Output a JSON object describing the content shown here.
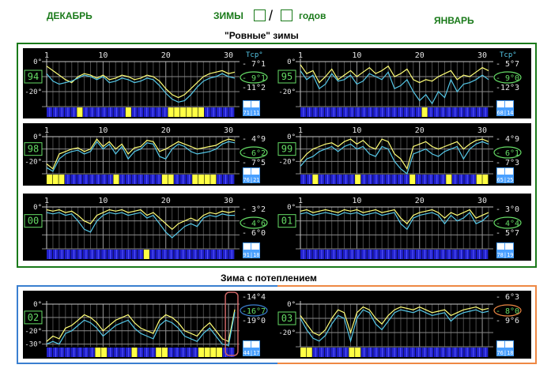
{
  "header": {
    "december": "ДЕКАБРЬ",
    "winters": "ЗИМЫ",
    "slash": "/",
    "years": "годов",
    "january": "ЯНВАРЬ"
  },
  "section_even": {
    "title": "\"Ровные\" зимы"
  },
  "section_warm": {
    "title": "Зима с потеплением"
  },
  "colors": {
    "frame_even": "#1a7a1a",
    "frame_warm_left": "#3a7fd0",
    "frame_warm_right": "#ee8844",
    "highlight": "#cc6666",
    "series_yellow": "#ffff77",
    "series_cyan": "#55c8e8",
    "bar_blue": "#2020cc",
    "bar_yellow": "#ffff44",
    "panel_bg": "#000000",
    "label_green": "#66dd66",
    "label_light": "#e6e6e6"
  },
  "chart_data": [
    {
      "type": "line",
      "month": "Декабрь",
      "year_label": "94",
      "x_ticks": [
        "1",
        "10",
        "20",
        "30"
      ],
      "y_ticks": [
        "0°",
        "-20°"
      ],
      "unit_label": "Tср°",
      "ylim": [
        -30,
        0
      ],
      "top_value": "- 7°1",
      "mid_value": "- 9°1",
      "bottom_value": "-11°2",
      "badge_top": "",
      "badge_bottom": "71|11",
      "series": [
        {
          "color": "yellow",
          "values": [
            -3,
            -6,
            -9,
            -12,
            -14,
            -10,
            -8,
            -9,
            -11,
            -9,
            -12,
            -11,
            -9,
            -10,
            -12,
            -11,
            -9,
            -10,
            -13,
            -18,
            -22,
            -24,
            -22,
            -18,
            -14,
            -10,
            -8,
            -7,
            -6,
            -8,
            -7
          ]
        },
        {
          "color": "cyan",
          "values": [
            -8,
            -13,
            -15,
            -14,
            -13,
            -11,
            -9,
            -10,
            -12,
            -10,
            -14,
            -13,
            -11,
            -12,
            -14,
            -13,
            -11,
            -12,
            -16,
            -21,
            -25,
            -27,
            -26,
            -22,
            -17,
            -13,
            -11,
            -10,
            -8,
            -10,
            -11
          ]
        }
      ],
      "bars": "BBBBBYBBBBBBBYBBBBBBYYYYYYBBBBB"
    },
    {
      "type": "line",
      "month": "Январь",
      "year_label": "95",
      "x_ticks": [
        "1",
        "10",
        "20",
        "30"
      ],
      "y_ticks": [
        "0°",
        "-20°"
      ],
      "unit_label": "Tср°",
      "ylim": [
        -30,
        0
      ],
      "top_value": "- 5°7",
      "mid_value": "- 9°0",
      "bottom_value": "-12°3",
      "badge_top": "",
      "badge_bottom": "68|14",
      "series": [
        {
          "color": "yellow",
          "values": [
            -2,
            -8,
            -6,
            -14,
            -10,
            -5,
            -12,
            -9,
            -6,
            -10,
            -7,
            -4,
            -8,
            -6,
            -3,
            -10,
            -8,
            -5,
            -12,
            -14,
            -12,
            -13,
            -10,
            -8,
            -6,
            -12,
            -9,
            -10,
            -7,
            -4,
            -6
          ]
        },
        {
          "color": "cyan",
          "values": [
            -6,
            -12,
            -9,
            -18,
            -15,
            -8,
            -13,
            -12,
            -9,
            -15,
            -13,
            -8,
            -10,
            -12,
            -7,
            -18,
            -16,
            -12,
            -20,
            -26,
            -22,
            -28,
            -20,
            -24,
            -12,
            -20,
            -15,
            -14,
            -12,
            -9,
            -12
          ]
        }
      ],
      "bars": "BBBBBBBBBBBBBBBBBBBBYBBBBBBBBBB"
    },
    {
      "type": "line",
      "month": "Декабрь",
      "year_label": "98",
      "x_ticks": [
        "1",
        "10",
        "20",
        "30"
      ],
      "y_ticks": [
        "0°",
        "-20°"
      ],
      "unit_label": "",
      "ylim": [
        -30,
        0
      ],
      "top_value": "- 4°9",
      "mid_value": "- 6°2",
      "bottom_value": "- 7°5",
      "badge_top": "",
      "badge_bottom": "76|21",
      "series": [
        {
          "color": "yellow",
          "values": [
            -22,
            -26,
            -14,
            -12,
            -10,
            -9,
            -12,
            -10,
            -2,
            -8,
            -4,
            -10,
            -6,
            -14,
            -9,
            -8,
            -3,
            -4,
            -12,
            -10,
            -7,
            -4,
            -6,
            -8,
            -10,
            -9,
            -8,
            -7,
            -4,
            -2,
            -3
          ]
        },
        {
          "color": "cyan",
          "values": [
            -25,
            -28,
            -18,
            -14,
            -12,
            -11,
            -14,
            -12,
            -4,
            -10,
            -6,
            -14,
            -8,
            -18,
            -12,
            -10,
            -5,
            -6,
            -16,
            -18,
            -10,
            -6,
            -8,
            -12,
            -14,
            -13,
            -12,
            -10,
            -6,
            -4,
            -5
          ]
        }
      ],
      "bars": "YYYBBBBBBBBYBBBBBBBYYBBBYYYYBBB"
    },
    {
      "type": "line",
      "month": "Январь",
      "year_label": "99",
      "x_ticks": [
        "1",
        "10",
        "20",
        "30"
      ],
      "y_ticks": [
        "0°",
        "-20°"
      ],
      "unit_label": "",
      "ylim": [
        -30,
        0
      ],
      "top_value": "- 4°9",
      "mid_value": "- 6°1",
      "bottom_value": "- 7°3",
      "badge_top": "",
      "badge_bottom": "65|25",
      "series": [
        {
          "color": "yellow",
          "values": [
            -20,
            -14,
            -10,
            -8,
            -6,
            -5,
            -8,
            -4,
            -2,
            -6,
            -3,
            -8,
            -10,
            -2,
            -4,
            -14,
            -18,
            -26,
            -8,
            -6,
            -4,
            -8,
            -10,
            -8,
            -6,
            -4,
            -10,
            -6,
            -3,
            -2,
            -4
          ]
        },
        {
          "color": "cyan",
          "values": [
            -24,
            -18,
            -16,
            -12,
            -10,
            -8,
            -12,
            -8,
            -6,
            -10,
            -8,
            -14,
            -16,
            -8,
            -10,
            -20,
            -26,
            -30,
            -14,
            -12,
            -10,
            -14,
            -16,
            -12,
            -10,
            -8,
            -18,
            -10,
            -6,
            -4,
            -6
          ]
        }
      ],
      "bars": "BBYBBBBBBYBBBBBBBBYBBBBBYBBBBYY"
    },
    {
      "type": "line",
      "month": "Декабрь",
      "year_label": "00",
      "x_ticks": [
        "1",
        "10",
        "20",
        "30"
      ],
      "y_ticks": [
        "0°"
      ],
      "unit_label": "",
      "ylim": [
        -30,
        0
      ],
      "top_value": "- 3°2",
      "mid_value": "- 4°6",
      "bottom_value": "- 6°0",
      "badge_top": "",
      "badge_bottom": "91|18",
      "series": [
        {
          "color": "yellow",
          "values": [
            -2,
            -3,
            -2,
            -4,
            -3,
            -6,
            -10,
            -12,
            -6,
            -4,
            -2,
            -3,
            -2,
            -4,
            -3,
            -2,
            -6,
            -4,
            -8,
            -12,
            -16,
            -12,
            -10,
            -8,
            -10,
            -6,
            -4,
            -5,
            -3,
            -4,
            -3
          ]
        },
        {
          "color": "cyan",
          "values": [
            -4,
            -5,
            -4,
            -6,
            -5,
            -10,
            -16,
            -18,
            -10,
            -6,
            -4,
            -5,
            -4,
            -6,
            -5,
            -4,
            -8,
            -6,
            -12,
            -18,
            -22,
            -18,
            -14,
            -12,
            -14,
            -8,
            -6,
            -7,
            -5,
            -6,
            -6
          ]
        }
      ],
      "bars": "BBBBBBBBBBBBBBBBYBBBBBBBBBBBBBB"
    },
    {
      "type": "line",
      "month": "Январь",
      "year_label": "01",
      "x_ticks": [
        "1",
        "10",
        "20",
        "30"
      ],
      "y_ticks": [
        "0°"
      ],
      "unit_label": "",
      "ylim": [
        -30,
        0
      ],
      "top_value": "- 3°0",
      "mid_value": "- 4°4",
      "bottom_value": "- 5°7",
      "badge_top": "",
      "badge_bottom": "78|19",
      "series": [
        {
          "color": "yellow",
          "values": [
            -3,
            -2,
            -4,
            -3,
            -2,
            -3,
            -4,
            -2,
            -3,
            -2,
            -4,
            -3,
            -2,
            -4,
            -3,
            -2,
            -8,
            -12,
            -6,
            -4,
            -3,
            -2,
            -4,
            -8,
            -4,
            -6,
            -4,
            -2,
            -8,
            -6,
            -4
          ]
        },
        {
          "color": "cyan",
          "values": [
            -5,
            -4,
            -6,
            -5,
            -4,
            -5,
            -6,
            -4,
            -5,
            -4,
            -6,
            -5,
            -4,
            -6,
            -5,
            -4,
            -12,
            -16,
            -8,
            -6,
            -5,
            -4,
            -6,
            -12,
            -6,
            -10,
            -8,
            -4,
            -12,
            -10,
            -6
          ]
        }
      ],
      "bars": "BBBBBBBBBBBBBBBBBBBBBBBBBBBBBBB"
    },
    {
      "type": "line",
      "month": "Декабрь",
      "year_label": "02",
      "x_ticks": [],
      "y_ticks": [
        "0°",
        "-20°",
        "-30°"
      ],
      "unit_label": "",
      "ylim": [
        -32,
        0
      ],
      "top_value": "-14°4",
      "mid_value": "-16°7",
      "bottom_value": "-19°0",
      "badge_top": "",
      "badge_bottom": "44|17",
      "series": [
        {
          "color": "yellow",
          "values": [
            -28,
            -24,
            -26,
            -18,
            -16,
            -12,
            -8,
            -10,
            -14,
            -20,
            -16,
            -12,
            -10,
            -8,
            -14,
            -18,
            -20,
            -22,
            -12,
            -8,
            -10,
            -14,
            -20,
            -22,
            -24,
            -18,
            -14,
            -20,
            -26,
            -28,
            -4
          ]
        },
        {
          "color": "cyan",
          "values": [
            -30,
            -28,
            -30,
            -22,
            -20,
            -16,
            -12,
            -14,
            -18,
            -24,
            -20,
            -16,
            -14,
            -12,
            -18,
            -22,
            -24,
            -26,
            -16,
            -12,
            -14,
            -18,
            -24,
            -26,
            -28,
            -22,
            -18,
            -24,
            -30,
            -31,
            -6
          ]
        }
      ],
      "bars": "BBBBBBBBYYBBBBYBBBYYBBBBBYYYYBB"
    },
    {
      "type": "line",
      "month": "Январь",
      "year_label": "03",
      "x_ticks": [],
      "y_ticks": [
        "0°",
        "-20°"
      ],
      "unit_label": "",
      "ylim": [
        -30,
        0
      ],
      "top_value": "- 6°3",
      "mid_value": "- 8°0",
      "bottom_value": "- 9°6",
      "badge_top": "",
      "badge_bottom": "76|18",
      "series": [
        {
          "color": "yellow",
          "values": [
            -8,
            -14,
            -20,
            -22,
            -18,
            -10,
            -4,
            -6,
            -20,
            -6,
            -2,
            -4,
            -10,
            -14,
            -8,
            -4,
            -2,
            -3,
            -4,
            -2,
            -4,
            -6,
            -5,
            -4,
            -8,
            -6,
            -4,
            -3,
            -2,
            -4,
            -3
          ]
        },
        {
          "color": "cyan",
          "values": [
            -10,
            -18,
            -24,
            -26,
            -22,
            -14,
            -8,
            -10,
            -26,
            -10,
            -4,
            -6,
            -14,
            -18,
            -12,
            -6,
            -4,
            -5,
            -6,
            -4,
            -6,
            -8,
            -7,
            -6,
            -12,
            -8,
            -6,
            -5,
            -4,
            -6,
            -5
          ]
        }
      ],
      "bars": "YYBBBBBBYYBBBBBBBBBBBBBBBBBBBBB"
    }
  ]
}
